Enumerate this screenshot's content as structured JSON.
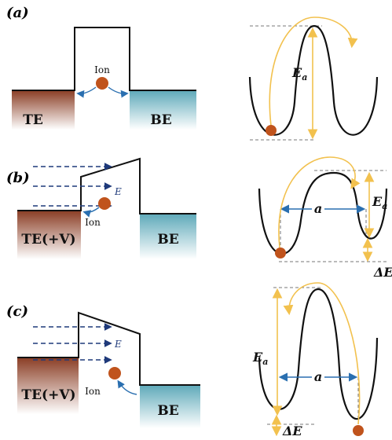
{
  "panels": [
    {
      "label": "(a)",
      "left_electrode": "TE",
      "right_electrode": "BE",
      "ion": "Ion",
      "activation_energy": {
        "symbol": "E",
        "subscript": "a"
      }
    },
    {
      "label": "(b)",
      "left_electrode": "TE(+V)",
      "right_electrode": "BE",
      "ion": "Ion",
      "field": "E",
      "activation_energy": {
        "symbol": "E",
        "subscript": "a"
      },
      "spacing": "a",
      "energy_shift": "ΔE"
    },
    {
      "label": "(c)",
      "left_electrode": "TE(+V)",
      "right_electrode": "BE",
      "ion": "Ion",
      "field": "E",
      "activation_energy": {
        "symbol": "E",
        "subscript": "a"
      },
      "spacing": "a",
      "energy_shift": "ΔE"
    }
  ]
}
